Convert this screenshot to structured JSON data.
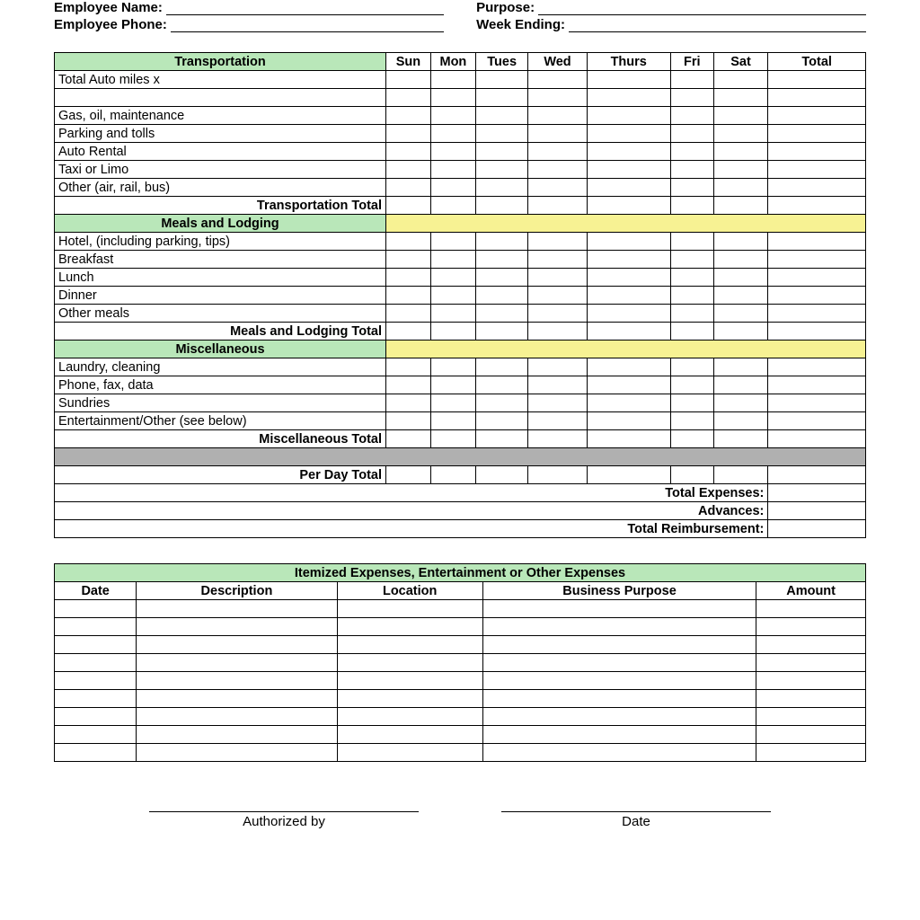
{
  "header": {
    "employee_name_label": "Employee Name:",
    "employee_phone_label": "Employee Phone:",
    "purpose_label": "Purpose:",
    "week_ending_label": "Week Ending:"
  },
  "days": {
    "sun": "Sun",
    "mon": "Mon",
    "tues": "Tues",
    "wed": "Wed",
    "thurs": "Thurs",
    "fri": "Fri",
    "sat": "Sat",
    "total": "Total"
  },
  "sections": {
    "transportation": {
      "title": "Transportation",
      "rows": [
        "Total Auto miles x",
        "",
        "Gas, oil, maintenance",
        "Parking and tolls",
        "Auto Rental",
        "Taxi or Limo",
        "Other (air, rail, bus)"
      ],
      "total_label": "Transportation Total"
    },
    "meals": {
      "title": "Meals and Lodging",
      "rows": [
        "Hotel, (including parking, tips)",
        "Breakfast",
        "Lunch",
        "Dinner",
        "Other meals"
      ],
      "total_label": "Meals and Lodging Total"
    },
    "misc": {
      "title": "Miscellaneous",
      "rows": [
        "Laundry, cleaning",
        "Phone, fax, data",
        "Sundries",
        "Entertainment/Other  (see below)"
      ],
      "total_label": "Miscellaneous Total"
    }
  },
  "summary": {
    "per_day_total": "Per Day Total",
    "total_expenses": "Total Expenses:",
    "advances": "Advances:",
    "total_reimbursement": "Total Reimbursement:"
  },
  "itemized": {
    "title": "Itemized Expenses, Entertainment or Other Expenses",
    "cols": {
      "date": "Date",
      "description": "Description",
      "location": "Location",
      "purpose": "Business Purpose",
      "amount": "Amount"
    },
    "blank_rows": 9
  },
  "signatures": {
    "authorized_by": "Authorized by",
    "date": "Date"
  },
  "style": {
    "green": "#b9e7b9",
    "yellow": "#f7f293",
    "gray": "#b0b0b0",
    "border": "#000000",
    "font_family": "Arial",
    "base_fontsize": 15
  }
}
